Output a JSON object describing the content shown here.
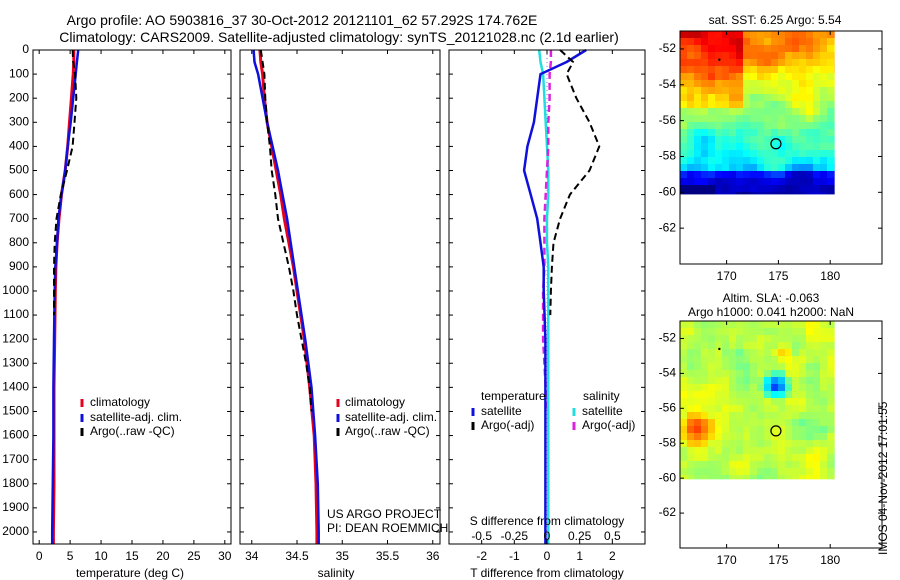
{
  "title": {
    "line1": "Argo profile: AO 5903816_37 30-Oct-2012 20121101_62 57.292S 174.762E",
    "line2": "Climatology: CARS2009. Satellite-adjusted climatology: synTS_20121028.nc (2.1d earlier)"
  },
  "colors": {
    "climatology": "#e8001c",
    "satellite": "#1010dd",
    "argo": "#000000",
    "salinity_satellite": "#22dddd",
    "salinity_argo": "#dd22dd",
    "zero_line": "#7777ff"
  },
  "yticks": [
    0,
    100,
    200,
    300,
    400,
    500,
    600,
    700,
    800,
    900,
    1000,
    1100,
    1200,
    1300,
    1400,
    1500,
    1600,
    1700,
    1800,
    1900,
    2000
  ],
  "ylim": [
    0,
    2050
  ],
  "panels": {
    "temperature": {
      "xlabel": "temperature (deg C)",
      "xticks": [
        "0",
        "5",
        "10",
        "15",
        "20",
        "25",
        "30"
      ],
      "legend": [
        "climatology",
        "satellite-adj. clim.",
        "Argo(..raw -QC)"
      ]
    },
    "salinity": {
      "xlabel": "salinity",
      "xticks": [
        "34",
        "34.5",
        "35",
        "35.5",
        "36"
      ],
      "legend": [
        "climatology",
        "satellite-adj. clim.",
        "Argo(..raw -QC)"
      ],
      "note1": "US ARGO PROJECT",
      "note2": "PI: DEAN ROEMMICH"
    },
    "difference": {
      "xlabel": "T difference from climatology",
      "xticks": [
        "-2",
        "-1",
        "0",
        "1",
        "2"
      ],
      "xlabel_top": "S difference from climatology",
      "xticks_top": [
        "-0.5",
        "-0.25",
        "0",
        "0.25",
        "0.5"
      ],
      "legend_title_t": "temperature",
      "legend_title_s": "salinity",
      "legend_t": [
        "satellite",
        "Argo(-adj)"
      ],
      "legend_s": [
        "satellite",
        "Argo(-adj)"
      ]
    }
  },
  "maps": {
    "sst": {
      "title": "sat. SST: 6.25 Argo: 5.54",
      "yticks": [
        "-52",
        "-54",
        "-56",
        "-58",
        "-60",
        "-62"
      ],
      "xticks": [
        "170",
        "175",
        "180"
      ]
    },
    "sla": {
      "title1": "Altim. SLA: -0.063",
      "title2": "Argo h1000: 0.041 h2000: NaN",
      "yticks": [
        "-52",
        "-54",
        "-56",
        "-58",
        "-60",
        "-62"
      ],
      "xticks": [
        "170",
        "175",
        "180"
      ]
    }
  },
  "footer": "IMOS 04-Nov-2012 17:01:55",
  "chart_data": [
    {
      "type": "line",
      "name": "temperature",
      "xlabel": "temperature (deg C)",
      "ylabel": "",
      "xlim": [
        -1,
        31
      ],
      "ylim": [
        2050,
        0
      ],
      "series": [
        {
          "name": "climatology",
          "depth": [
            0,
            50,
            100,
            200,
            300,
            400,
            500,
            600,
            700,
            800,
            900,
            1000,
            1200,
            1400,
            1600,
            1800,
            2000,
            2050
          ],
          "values": [
            5.6,
            5.6,
            5.5,
            5.2,
            4.9,
            4.6,
            4.2,
            3.6,
            3.2,
            2.9,
            2.7,
            2.6,
            2.5,
            2.4,
            2.4,
            2.4,
            2.3,
            2.3
          ]
        },
        {
          "name": "satellite-adj. clim.",
          "depth": [
            0,
            50,
            100,
            200,
            300,
            400,
            500,
            600,
            700,
            800,
            900,
            1000,
            1200,
            1400,
            1600,
            1800,
            2000,
            2050
          ],
          "values": [
            6.3,
            6.1,
            5.9,
            5.5,
            5.1,
            4.6,
            4.2,
            3.6,
            3.1,
            2.9,
            2.6,
            2.5,
            2.4,
            2.3,
            2.3,
            2.2,
            2.1,
            2.1
          ]
        },
        {
          "name": "Argo(..raw -QC)",
          "depth": [
            0,
            50,
            100,
            200,
            300,
            400,
            500,
            600,
            700,
            800,
            900,
            1000,
            1100
          ],
          "values": [
            5.4,
            5.5,
            5.8,
            6.0,
            5.7,
            5.4,
            4.5,
            3.5,
            2.8,
            2.5,
            2.4,
            2.4,
            2.4
          ]
        }
      ]
    },
    {
      "type": "line",
      "name": "salinity",
      "xlabel": "salinity",
      "ylabel": "",
      "xlim": [
        33.87,
        36.08
      ],
      "ylim": [
        2050,
        0
      ],
      "series": [
        {
          "name": "climatology",
          "depth": [
            0,
            50,
            100,
            200,
            300,
            400,
            500,
            600,
            700,
            800,
            900,
            1000,
            1200,
            1400,
            1600,
            1800,
            2000,
            2050
          ],
          "values": [
            34.09,
            34.1,
            34.12,
            34.14,
            34.17,
            34.22,
            34.27,
            34.32,
            34.36,
            34.41,
            34.46,
            34.5,
            34.58,
            34.64,
            34.69,
            34.71,
            34.72,
            34.72
          ]
        },
        {
          "name": "satellite-adj. clim.",
          "depth": [
            0,
            50,
            100,
            200,
            300,
            400,
            500,
            600,
            700,
            800,
            900,
            1000,
            1200,
            1400,
            1600,
            1800,
            2000,
            2050
          ],
          "values": [
            34.02,
            34.03,
            34.07,
            34.12,
            34.17,
            34.23,
            34.29,
            34.34,
            34.39,
            34.43,
            34.47,
            34.51,
            34.59,
            34.66,
            34.7,
            34.73,
            34.74,
            34.74
          ]
        },
        {
          "name": "Argo(..raw -QC)",
          "depth": [
            0,
            50,
            100,
            200,
            300,
            400,
            500,
            600,
            700,
            800,
            900,
            1000,
            1100,
            1200,
            1300,
            1400,
            1500
          ],
          "values": [
            34.1,
            34.12,
            34.14,
            34.15,
            34.17,
            34.2,
            34.22,
            34.26,
            34.29,
            34.35,
            34.41,
            34.46,
            34.5,
            34.55,
            34.6,
            34.64,
            34.66
          ]
        }
      ]
    },
    {
      "type": "line",
      "name": "difference from climatology",
      "xlabel": "T difference from climatology",
      "ylabel": "",
      "xlim": [
        -3,
        3
      ],
      "xlim_top": [
        -0.75,
        0.75
      ],
      "ylim": [
        2050,
        0
      ],
      "series": [
        {
          "name": "temperature satellite",
          "axis": "T",
          "depth": [
            0,
            50,
            100,
            200,
            300,
            400,
            500,
            600,
            700,
            800,
            900,
            1000,
            1200,
            1400,
            1600,
            1800,
            2000,
            2050
          ],
          "values": [
            1.2,
            0.6,
            -0.2,
            -0.3,
            -0.4,
            -0.6,
            -0.7,
            -0.5,
            -0.3,
            -0.2,
            -0.1,
            -0.1,
            -0.05,
            -0.05,
            -0.05,
            -0.05,
            -0.05,
            -0.05
          ]
        },
        {
          "name": "temperature Argo(-adj)",
          "axis": "T",
          "depth": [
            0,
            50,
            100,
            200,
            300,
            400,
            500,
            600,
            700,
            800,
            900,
            1000,
            1100
          ],
          "values": [
            0.4,
            0.8,
            0.6,
            0.9,
            1.3,
            1.6,
            1.3,
            0.7,
            0.4,
            0.2,
            0.15,
            0.12,
            0.1
          ]
        },
        {
          "name": "salinity satellite",
          "axis": "S",
          "depth": [
            0,
            50,
            100,
            200,
            300,
            400,
            500,
            600,
            700,
            800,
            900,
            1000,
            1200,
            1400,
            1600,
            1800,
            2000,
            2050
          ],
          "values": [
            -0.06,
            -0.05,
            -0.03,
            -0.02,
            -0.01,
            0.0,
            0.01,
            0.01,
            0.0,
            0.0,
            0.01,
            0.01,
            0.01,
            0.01,
            0.01,
            0.01,
            0.01,
            0.01
          ]
        },
        {
          "name": "salinity Argo(-adj)",
          "axis": "S",
          "depth": [
            0,
            50,
            100,
            200,
            300,
            400,
            500,
            600,
            700,
            800,
            900,
            1000,
            1100,
            1200,
            1300,
            1400,
            1500
          ],
          "values": [
            0.03,
            0.03,
            0.02,
            0.02,
            0.01,
            0.01,
            0.0,
            -0.01,
            -0.02,
            -0.02,
            -0.02,
            -0.03,
            -0.03,
            -0.03,
            -0.02,
            -0.01,
            -0.01
          ]
        }
      ]
    },
    {
      "type": "heatmap",
      "name": "sst map",
      "title": "sat. SST: 6.25 Argo: 5.54",
      "xlim": [
        165.5,
        185
      ],
      "ylim": [
        -64,
        -51
      ],
      "argo_position": [
        174.762,
        -57.292
      ]
    },
    {
      "type": "heatmap",
      "name": "sla map",
      "title": "Altim. SLA: -0.063",
      "xlim": [
        165.5,
        185
      ],
      "ylim": [
        -64,
        -51
      ],
      "argo_position": [
        174.762,
        -57.292
      ]
    }
  ]
}
